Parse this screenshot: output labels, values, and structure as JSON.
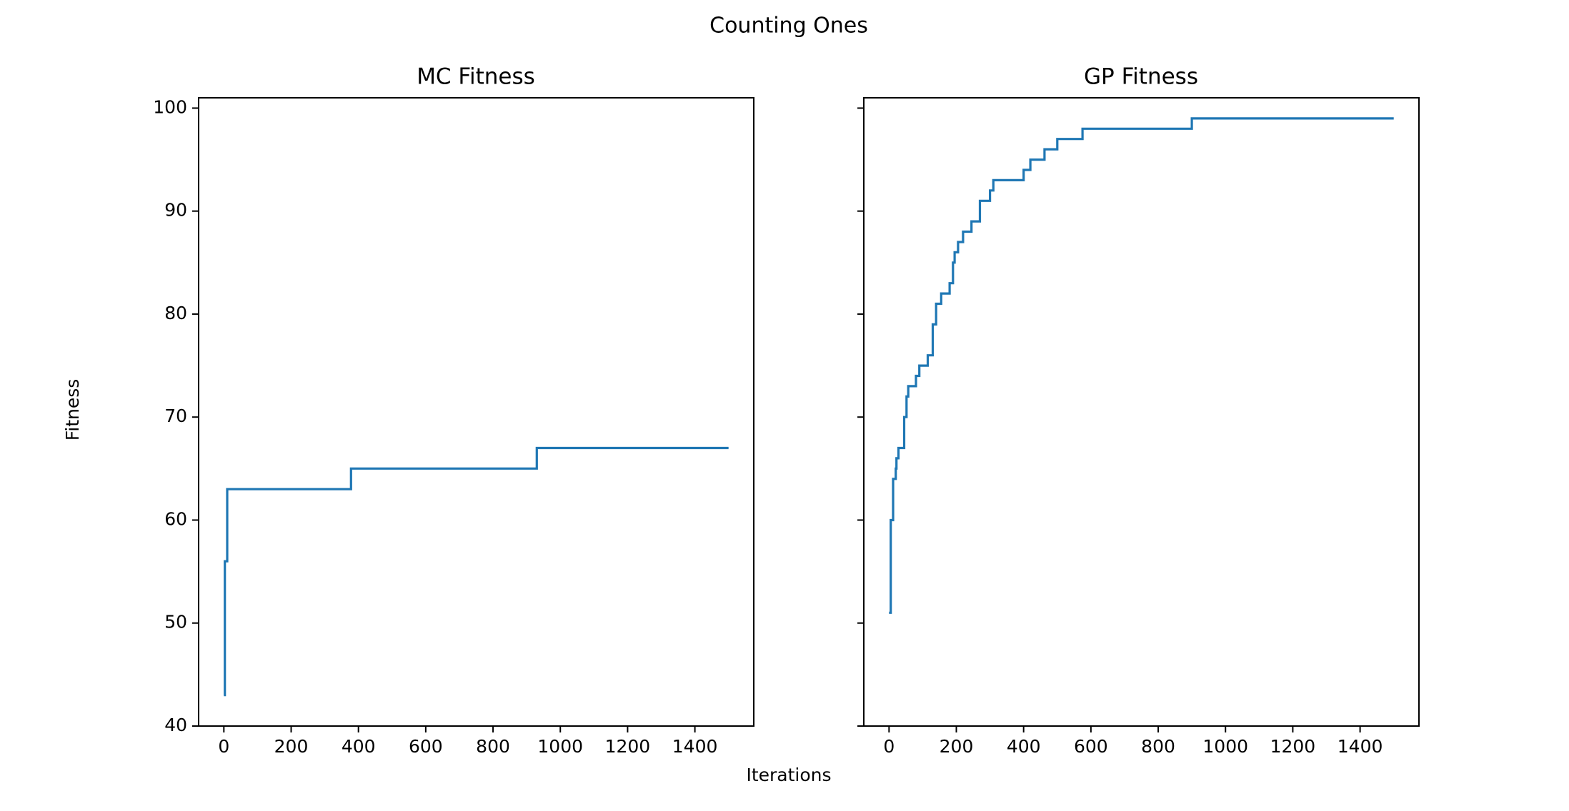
{
  "figure": {
    "suptitle": "Counting Ones",
    "xlabel": "Iterations",
    "ylabel": "Fitness"
  },
  "colors": {
    "line": "#1f77b4",
    "background": "#ffffff",
    "axes": "#000000"
  },
  "chart_data": [
    {
      "type": "line",
      "title": "MC Fitness",
      "xlabel": "Iterations",
      "ylabel": "Fitness",
      "xlim": [
        -75,
        1575
      ],
      "ylim": [
        40,
        101
      ],
      "xticks": [
        0,
        200,
        400,
        600,
        800,
        1000,
        1200,
        1400
      ],
      "yticks": [
        40,
        50,
        60,
        70,
        80,
        90,
        100
      ],
      "show_yticklabels": true,
      "grid": false,
      "series": [
        {
          "step": "post",
          "x": [
            0,
            3,
            10,
            378,
            930,
            1500
          ],
          "y": [
            43,
            56,
            63,
            65,
            67,
            67
          ]
        }
      ]
    },
    {
      "type": "line",
      "title": "GP Fitness",
      "xlabel": "Iterations",
      "ylabel": "Fitness",
      "xlim": [
        -75,
        1575
      ],
      "ylim": [
        40,
        101
      ],
      "xticks": [
        0,
        200,
        400,
        600,
        800,
        1000,
        1200,
        1400
      ],
      "yticks": [
        40,
        50,
        60,
        70,
        80,
        90,
        100
      ],
      "show_yticklabels": false,
      "grid": false,
      "series": [
        {
          "step": "post",
          "x": [
            0,
            5,
            12,
            20,
            22,
            28,
            45,
            52,
            57,
            65,
            80,
            90,
            115,
            130,
            140,
            155,
            180,
            190,
            195,
            200,
            205,
            220,
            245,
            270,
            300,
            310,
            400,
            420,
            462,
            500,
            575,
            900,
            1500
          ],
          "y": [
            51,
            60,
            64,
            65,
            66,
            67,
            70,
            72,
            73,
            73,
            74,
            75,
            76,
            79,
            81,
            82,
            83,
            85,
            86,
            86,
            87,
            88,
            89,
            91,
            92,
            93,
            94,
            95,
            96,
            97,
            98,
            99,
            99
          ]
        }
      ]
    }
  ]
}
